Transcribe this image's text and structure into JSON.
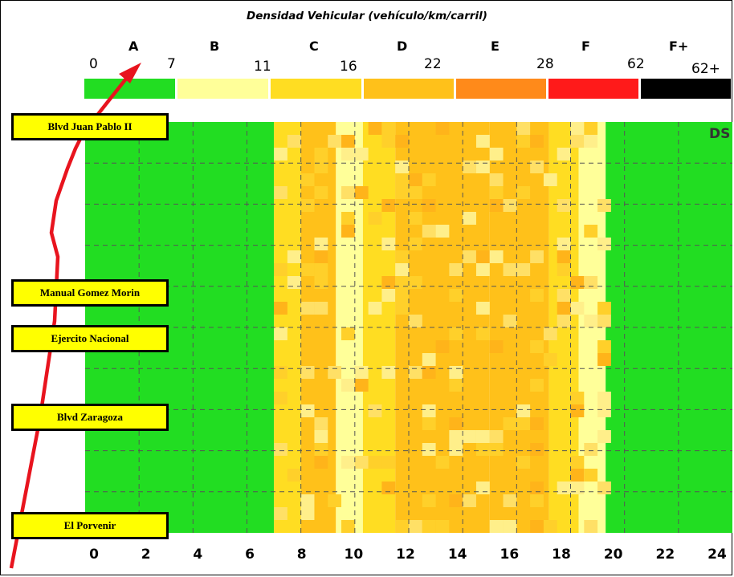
{
  "chart_data": {
    "type": "heatmap",
    "title": "Densidad Vehicular (vehículo/km/carril)",
    "legend": {
      "levels": [
        "A",
        "B",
        "C",
        "D",
        "E",
        "F",
        "F+"
      ],
      "boundaries": [
        "0",
        "7",
        "11",
        "16",
        "22",
        "28",
        "62",
        "62+"
      ],
      "colors": [
        "#22dd22",
        "#ffff99",
        "#ffdd22",
        "#ffc11a",
        "#ff8a1a",
        "#ff1a1a",
        "#000000"
      ]
    },
    "x_ticks": [
      "0",
      "2",
      "4",
      "6",
      "8",
      "10",
      "12",
      "14",
      "16",
      "18",
      "20",
      "22",
      "24"
    ],
    "xlim": [
      0,
      24
    ],
    "road_labels": [
      "Blvd Juan Pablo II",
      "Manual Gomez Morin",
      "Ejercito Nacional",
      "Blvd Zaragoza",
      "El Porvenir"
    ],
    "corner_label": "DS",
    "grid": true,
    "density_profile_by_hour": [
      {
        "from": 0,
        "to": 7,
        "level": "A"
      },
      {
        "from": 7,
        "to": 8,
        "level": "C"
      },
      {
        "from": 8,
        "to": 9.3,
        "level": "D"
      },
      {
        "from": 9.3,
        "to": 10.3,
        "level": "B"
      },
      {
        "from": 10.3,
        "to": 11.5,
        "level": "C"
      },
      {
        "from": 11.5,
        "to": 15,
        "level": "D"
      },
      {
        "from": 15,
        "to": 17.2,
        "level": "D"
      },
      {
        "from": 17.2,
        "to": 18.3,
        "level": "C"
      },
      {
        "from": 18.3,
        "to": 19.3,
        "level": "B"
      },
      {
        "from": 19.3,
        "to": 24,
        "level": "A"
      }
    ]
  }
}
